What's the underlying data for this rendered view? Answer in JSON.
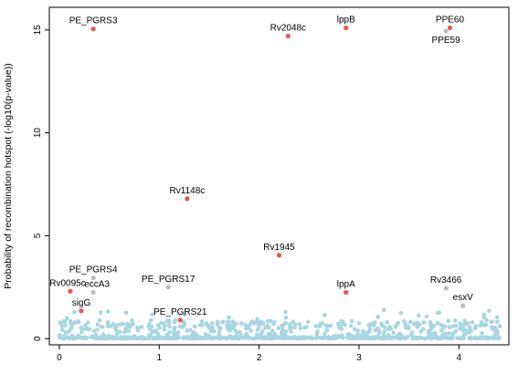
{
  "chart_data": {
    "type": "scatter",
    "title": "",
    "xlabel": "",
    "ylabel": "Probability of recombination hotspot (-log10(p-value))",
    "xlim": [
      -0.1,
      4.5
    ],
    "ylim": [
      -0.3,
      16.1
    ],
    "x_ticks": [
      0,
      1,
      2,
      3,
      4
    ],
    "y_ticks": [
      0,
      5,
      10,
      15
    ],
    "grid": false,
    "legend": "none",
    "colors": {
      "background_points": "#a8d6e1",
      "highlight_points": "#e8564e",
      "gray_points": "#bdbdbd",
      "axis": "#000000",
      "label_text": "#000000"
    },
    "labeled_points": [
      {
        "label": "PE_PGRS3",
        "x": 0.34,
        "y": 15.05,
        "color": "#e8564e",
        "anchor": "above"
      },
      {
        "label": "Rv2048c",
        "x": 2.29,
        "y": 14.7,
        "color": "#e8564e",
        "anchor": "above"
      },
      {
        "label": "lppB",
        "x": 2.87,
        "y": 15.1,
        "color": "#e8564e",
        "anchor": "above"
      },
      {
        "label": "PPE60",
        "x": 3.91,
        "y": 15.1,
        "color": "#e8564e",
        "anchor": "above"
      },
      {
        "label": "PPE59",
        "x": 3.87,
        "y": 14.95,
        "color": "#bdbdbd",
        "anchor": "below"
      },
      {
        "label": "Rv1148c",
        "x": 1.28,
        "y": 6.8,
        "color": "#e8564e",
        "anchor": "above"
      },
      {
        "label": "Rv1945",
        "x": 2.2,
        "y": 4.05,
        "color": "#e8564e",
        "anchor": "above"
      },
      {
        "label": "PE_PGRS4",
        "x": 0.34,
        "y": 2.95,
        "color": "#bdbdbd",
        "anchor": "above"
      },
      {
        "label": "Rv0095c",
        "x": 0.11,
        "y": 2.3,
        "color": "#e8564e",
        "anchor": "left-above"
      },
      {
        "label": "eccA3",
        "x": 0.34,
        "y": 2.25,
        "color": "#bdbdbd",
        "anchor": "right-above"
      },
      {
        "label": "PE_PGRS17",
        "x": 1.09,
        "y": 2.5,
        "color": "#bdbdbd",
        "anchor": "above"
      },
      {
        "label": "sigG",
        "x": 0.22,
        "y": 1.35,
        "color": "#e8564e",
        "anchor": "above"
      },
      {
        "label": "lppA",
        "x": 2.87,
        "y": 2.25,
        "color": "#e8564e",
        "anchor": "above"
      },
      {
        "label": "Rv3466",
        "x": 3.87,
        "y": 2.45,
        "color": "#bdbdbd",
        "anchor": "above"
      },
      {
        "label": "esxV",
        "x": 4.04,
        "y": 1.6,
        "color": "#bdbdbd",
        "anchor": "above"
      },
      {
        "label": "PE_PGRS21",
        "x": 1.21,
        "y": 0.9,
        "color": "#e8564e",
        "anchor": "above"
      }
    ],
    "background_points": {
      "x_range": [
        0,
        4.41
      ],
      "count": 900,
      "y_typical_max": 0.9,
      "y_outlier_max": 1.45,
      "note_values": "dense band of low-significance sites near y = 0"
    }
  }
}
